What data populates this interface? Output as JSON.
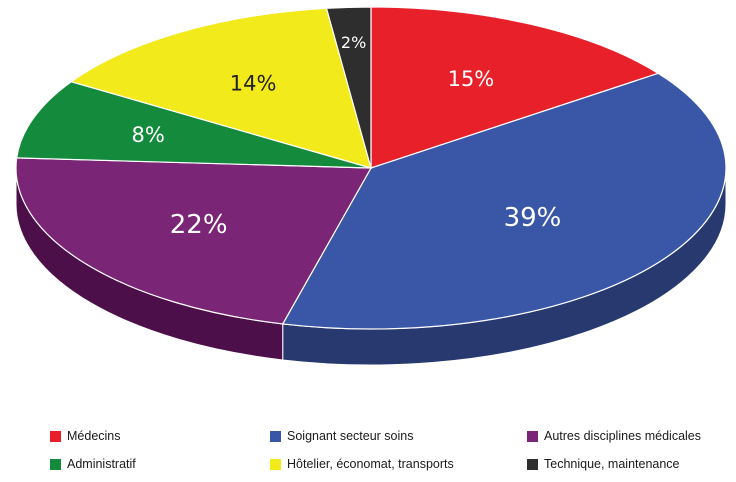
{
  "chart_data": {
    "type": "pie",
    "style": "3d",
    "title": "",
    "legend_position": "bottom",
    "slices": [
      {
        "label": "Médecins",
        "value": 15,
        "display": "15%",
        "color": "#e8202a",
        "side_color": "#9a1418"
      },
      {
        "label": "Soignant secteur soins",
        "value": 39,
        "display": "39%",
        "color": "#3a57a7",
        "side_color": "#27396f"
      },
      {
        "label": "Autres disciplines médicales",
        "value": 22,
        "display": "22%",
        "color": "#7a2575",
        "side_color": "#4d0f4a"
      },
      {
        "label": "Administratif",
        "value": 8,
        "display": "8%",
        "color": "#148a3c",
        "side_color": "#0b5a26"
      },
      {
        "label": "Hôtelier, économat, transports",
        "value": 14,
        "display": "14%",
        "color": "#f2ea1a",
        "side_color": "#a8a10e"
      },
      {
        "label": "Technique, maintenance",
        "value": 2,
        "display": "2%",
        "color": "#2e2e2e",
        "side_color": "#161616"
      }
    ]
  }
}
